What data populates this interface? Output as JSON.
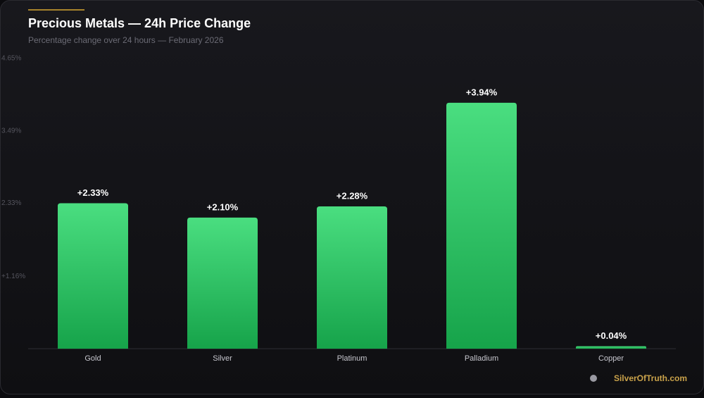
{
  "chart_data": {
    "type": "bar",
    "title": "Precious Metals — 24h Price Change",
    "subtitle": "Percentage change over 24 hours — February 2026",
    "categories": [
      "Gold",
      "Silver",
      "Platinum",
      "Palladium",
      "Copper"
    ],
    "values": [
      2.33,
      2.1,
      2.28,
      3.94,
      0.04
    ],
    "value_labels": [
      "+2.33%",
      "+2.10%",
      "+2.28%",
      "+3.94%",
      "+0.04%"
    ],
    "color": "#22c55e",
    "ylim": [
      0,
      4.65
    ],
    "yticks": [
      {
        "value": 1.16,
        "label": "+1.16%"
      },
      {
        "value": 2.33,
        "label": "2.33%"
      },
      {
        "value": 3.49,
        "label": "3.49%"
      },
      {
        "value": 4.65,
        "label": "4.65%"
      }
    ],
    "watermark": "SilverOfTruth.com"
  }
}
